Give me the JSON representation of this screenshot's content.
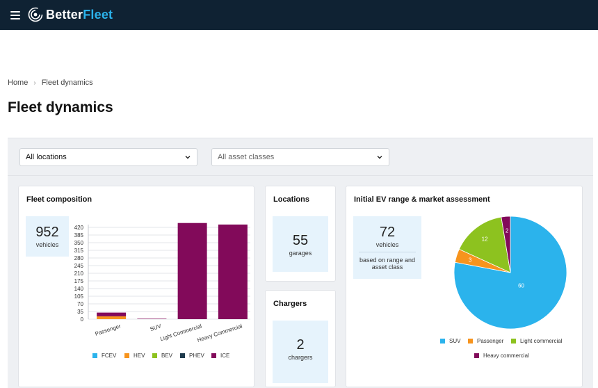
{
  "app": {
    "brand_part1": "Better",
    "brand_part2": "Fleet"
  },
  "breadcrumb": {
    "home": "Home",
    "current": "Fleet dynamics"
  },
  "page": {
    "title": "Fleet dynamics"
  },
  "filters": {
    "location": "All locations",
    "asset_class": "All asset classes"
  },
  "fleet_composition": {
    "title": "Fleet composition",
    "count": "952",
    "count_unit": "vehicles"
  },
  "locations": {
    "title": "Locations",
    "count": "55",
    "unit": "garages"
  },
  "chargers": {
    "title": "Chargers",
    "count": "2",
    "unit": "chargers"
  },
  "ev_assessment": {
    "title": "Initial EV range & market assessment",
    "count": "72",
    "count_unit": "vehicles",
    "note": "based on range and asset class"
  },
  "colors": {
    "FCEV": "#2bb3ec",
    "HEV": "#f7941d",
    "BEV": "#8dc21f",
    "PHEV": "#1e3a4c",
    "ICE": "#820a5a",
    "header": "#0f2233"
  },
  "chart_data": [
    {
      "type": "bar",
      "stacked": true,
      "categories": [
        "Passenger",
        "SUV",
        "Light Commercial",
        "Heavy Commercial"
      ],
      "series": [
        {
          "name": "FCEV",
          "values": [
            0,
            0,
            0,
            0
          ]
        },
        {
          "name": "HEV",
          "values": [
            13,
            0,
            0,
            0
          ]
        },
        {
          "name": "BEV",
          "values": [
            0,
            0,
            0,
            0
          ]
        },
        {
          "name": "PHEV",
          "values": [
            0,
            0,
            0,
            0
          ]
        },
        {
          "name": "ICE",
          "values": [
            17,
            2,
            440,
            433
          ]
        }
      ],
      "yticks": [
        "420",
        "385",
        "350",
        "315",
        "280",
        "245",
        "210",
        "175",
        "140",
        "105",
        "70",
        "35",
        "0"
      ],
      "ylim": [
        0,
        450
      ],
      "grid": true,
      "legend": "bottom"
    },
    {
      "type": "pie",
      "labels": [
        "SUV",
        "Passenger",
        "Light commercial",
        "Heavy commercial"
      ],
      "values": [
        60,
        3,
        12,
        2
      ],
      "value_labels": [
        "60",
        "3",
        "12",
        "2"
      ],
      "colors": [
        "#2bb3ec",
        "#f7941d",
        "#8dc21f",
        "#820a5a"
      ],
      "legend": "bottom"
    }
  ]
}
